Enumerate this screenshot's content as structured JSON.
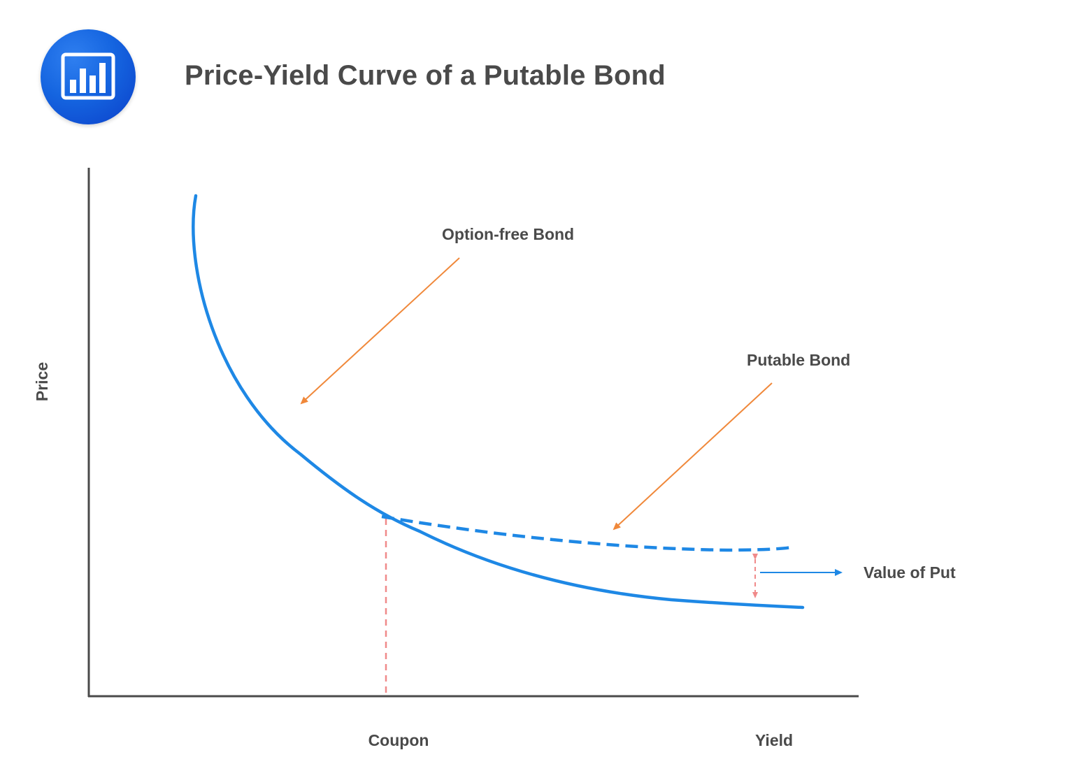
{
  "header": {
    "title": "Price-Yield Curve of a Putable Bond",
    "logo_icon": "bar-chart-icon"
  },
  "chart_data": {
    "type": "line",
    "title": "Price-Yield Curve of a Putable Bond",
    "xlabel": "Yield",
    "ylabel": "Price",
    "x_tick_labels": [
      "Coupon"
    ],
    "series": [
      {
        "name": "Option-free Bond",
        "style": "solid",
        "color": "#1e88e5"
      },
      {
        "name": "Putable Bond",
        "style": "dashed",
        "color": "#1e88e5"
      }
    ],
    "annotations": [
      {
        "text": "Option-free Bond",
        "color": "#f0883a"
      },
      {
        "text": "Putable Bond",
        "color": "#f0883a"
      },
      {
        "text": "Value of Put",
        "color": "#1e88e5"
      }
    ],
    "guide_color": "#f08a8a",
    "axis_color": "#4a4a4a",
    "grid": false
  }
}
